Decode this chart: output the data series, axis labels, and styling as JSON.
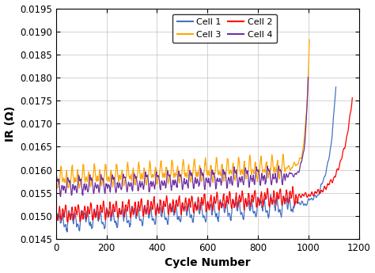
{
  "title": "",
  "xlabel": "Cycle Number",
  "ylabel": "IR (Ω)",
  "xlim": [
    0,
    1200
  ],
  "ylim": [
    0.0145,
    0.0195
  ],
  "yticks": [
    0.0145,
    0.015,
    0.0155,
    0.016,
    0.0165,
    0.017,
    0.0175,
    0.018,
    0.0185,
    0.019,
    0.0195
  ],
  "xticks": [
    0,
    200,
    400,
    600,
    800,
    1000,
    1200
  ],
  "cell1_color": "#4472C4",
  "cell2_color": "#FF0000",
  "cell3_color": "#FFA500",
  "cell4_color": "#7030A0",
  "background_color": "#FFFFFF",
  "grid_color": "#C0C0C0",
  "seed": 12
}
